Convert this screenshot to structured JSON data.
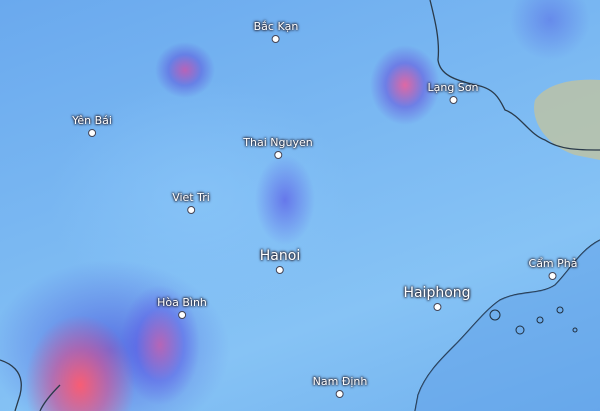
{
  "map": {
    "layer": "precipitation",
    "colors": {
      "light": "#86c3f5",
      "moderate": "#5a6ae0",
      "heavy": "#ff5a6e",
      "land_outside": "#b5bfa8"
    },
    "cities": [
      {
        "name": "Bắc Kạn",
        "size": "small"
      },
      {
        "name": "Lạng Sơn",
        "size": "small"
      },
      {
        "name": "Yên Bái",
        "size": "small"
      },
      {
        "name": "Thai Nguyen",
        "size": "small"
      },
      {
        "name": "Viet Tri",
        "size": "small"
      },
      {
        "name": "Hanoi",
        "size": "big"
      },
      {
        "name": "Hòa Bình",
        "size": "small"
      },
      {
        "name": "Haiphong",
        "size": "big"
      },
      {
        "name": "Cẩm Phả",
        "size": "small"
      },
      {
        "name": "Nam Định",
        "size": "small"
      }
    ]
  }
}
